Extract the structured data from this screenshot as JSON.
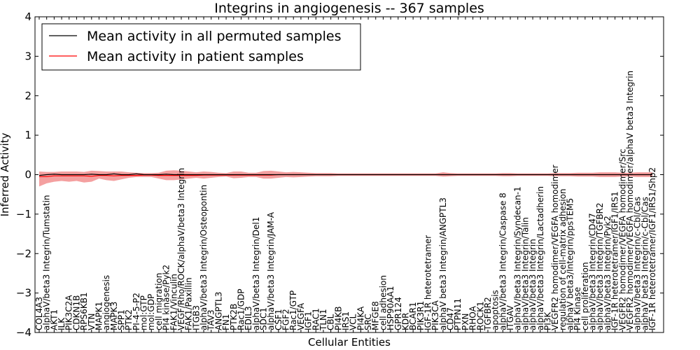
{
  "chart_data": {
    "type": "line",
    "title": "Integrins in angiogenesis -- 367 samples",
    "xlabel": "Cellular Entities",
    "ylabel": "Inferred Activity",
    "ylim": [
      -4,
      4
    ],
    "yticks": [
      -4,
      -3,
      -2,
      -1,
      0,
      1,
      2,
      3,
      4
    ],
    "ytick_labels": [
      "−4",
      "−3",
      "−2",
      "−1",
      "0",
      "1",
      "2",
      "3",
      "4"
    ],
    "grid": false,
    "legend_position": "top-left",
    "legend": [
      {
        "label": "Mean activity in all permuted samples",
        "color": "#000000"
      },
      {
        "label": "Mean activity in patient samples",
        "color": "#ff0000"
      }
    ],
    "band_color": "#f08080",
    "categories": [
      "COL4A3",
      "alphaV/beta3 Integrin/Tumstatin",
      "AKT1",
      "ILK",
      "PIK3C2A",
      "CDKN1B",
      "RPS6KB1",
      "VTN",
      "MAPK1",
      "angiogenesis",
      "MAPK3",
      "SPP1",
      "PTK2",
      "PI-4-5-P2",
      "mol:GTP",
      "mol:GDP",
      "cell migration",
      "PI4 kinase/Pyk2",
      "FAK1/Vinculin",
      "VEGF/Rho/ROCK/alphaV/beta3 Integrin",
      "FAK1/Paxillin",
      "ITGB3",
      "alphaV/beta3 Integrin/Osteopontin",
      "TAV3",
      "ANGPTL3",
      "FN1",
      "PTK2B",
      "Rac1/GDP",
      "EDIL3",
      "alphaV/beta3 Integrin/Del1",
      "SDC1",
      "alphaV/beta3 Integrin/JAM-A",
      "CSF1",
      "FGF2",
      "Rac1/GTP",
      "VEGFA",
      "IGF1",
      "RAC1",
      "TLN1",
      "CBL",
      "PI4KB",
      "IRS1",
      "VCL",
      "PI4KA",
      "SRC",
      "MFGE8",
      "cell adhesion",
      "HSP90AA1",
      "GPR124",
      "KDR",
      "BCAR1",
      "PIK3R1",
      "IGF-1R heterotetramer",
      "PIK3CA",
      "alphaV beta3 Integrin/ANGPTL3",
      "CD47",
      "PTPN11",
      "PXN",
      "RHOA",
      "ROCK1",
      "TGFBR2",
      "apoptosis",
      "alphaV/beta3 Integrin/Caspase 8",
      "ITGAV",
      "alphaV/beta3 Integrin/Syndecan-1",
      "alphaV/beta3 Integrin/Talin",
      "alphaV/beta3 Integrin",
      "alphaV/beta3 Integrin/Lactadherin",
      "PI3K",
      "VEGFR2 homodimer/VEGFA homodimer",
      "regulation of cell-matrix adhesion",
      "alphaV beta3/Integrin/ppsTEM5",
      "PI4 Kinase",
      "cell proliferation",
      "alphaV/beta3 Integrin/CD47",
      "alphaV/beta3 Integrin/TGFBR2",
      "alphaV/beta3 Integrin/Pyk2",
      "IGF-1R heterotetramer/IGF1/IRS1",
      "VEGFR2 homodimer/VEGFA homodimer/Src",
      "VEGFR2 homodimer/VEGFA homodimer/alphaV beta3 Integrin",
      "alphaV/beta3 Integrin/c-Cbl/Cas",
      "alphaV beta3 Integrin/c-Cbl/Cas",
      "IGF-1R heterotetramer/IGF1/IRS1/Shp2"
    ],
    "series": [
      {
        "name": "Mean activity in all permuted samples",
        "color": "#000000",
        "values": [
          -0.02,
          0.0,
          0.01,
          0.0,
          0.0,
          0.0,
          0.0,
          0.01,
          0.0,
          0.0,
          0.02,
          0.0,
          0.0,
          0.02,
          0.0,
          0.0,
          0.0,
          0.01,
          0.0,
          0.0,
          0.0,
          0.0,
          0.0,
          0.0,
          0.0,
          0.0,
          0.0,
          0.0,
          0.0,
          0.0,
          0.0,
          0.0,
          0.0,
          0.0,
          0.0,
          0.0,
          0.0,
          0.0,
          0.0,
          0.0,
          0.0,
          0.0,
          0.0,
          0.0,
          0.0,
          0.0,
          0.0,
          0.0,
          0.0,
          0.0,
          0.0,
          0.0,
          0.0,
          0.0,
          0.0,
          0.0,
          0.0,
          0.0,
          0.0,
          0.0,
          0.0,
          0.0,
          0.0,
          0.0,
          0.0,
          0.0,
          0.0,
          0.0,
          0.0,
          0.0,
          0.0,
          0.0,
          0.0,
          0.0,
          0.0,
          0.0,
          0.0,
          0.0,
          0.0,
          0.0,
          0.0,
          0.0,
          0.0
        ]
      },
      {
        "name": "Mean activity in patient samples",
        "color": "#ff0000",
        "values": [
          -0.05,
          -0.05,
          -0.03,
          -0.03,
          -0.03,
          -0.03,
          -0.03,
          -0.04,
          -0.02,
          -0.02,
          -0.03,
          -0.02,
          -0.02,
          -0.02,
          -0.01,
          -0.01,
          -0.02,
          -0.02,
          -0.02,
          -0.02,
          -0.02,
          -0.02,
          -0.01,
          -0.01,
          -0.01,
          -0.01,
          -0.01,
          -0.01,
          -0.01,
          -0.01,
          -0.01,
          -0.01,
          0.0,
          0.0,
          0.0,
          0.0,
          0.0,
          0.0,
          0.0,
          0.0,
          0.0,
          0.0,
          0.0,
          0.0,
          0.0,
          0.0,
          0.0,
          0.0,
          0.0,
          0.0,
          0.0,
          0.0,
          0.0,
          0.0,
          0.0,
          0.0,
          0.0,
          0.0,
          0.0,
          0.0,
          0.0,
          0.0,
          0.0,
          0.0,
          0.0,
          0.0,
          0.0,
          0.0,
          0.0,
          0.0,
          0.0,
          0.0,
          0.0,
          0.0,
          0.0,
          0.0,
          0.0,
          0.0,
          0.0,
          0.0,
          0.0,
          0.0,
          0.0
        ]
      }
    ],
    "band_upper": [
      0.08,
      0.07,
      0.07,
      0.08,
      0.08,
      0.08,
      0.07,
      0.1,
      0.09,
      0.08,
      0.08,
      0.08,
      0.06,
      0.05,
      0.04,
      0.04,
      0.05,
      0.1,
      0.11,
      0.1,
      0.08,
      0.06,
      0.08,
      0.07,
      0.05,
      0.04,
      0.08,
      0.08,
      0.05,
      0.05,
      0.09,
      0.1,
      0.08,
      0.06,
      0.07,
      0.06,
      0.05,
      0.04,
      0.04,
      0.04,
      0.03,
      0.03,
      0.03,
      0.03,
      0.03,
      0.03,
      0.03,
      0.03,
      0.03,
      0.03,
      0.03,
      0.03,
      0.03,
      0.03,
      0.06,
      0.04,
      0.03,
      0.03,
      0.03,
      0.03,
      0.03,
      0.03,
      0.04,
      0.04,
      0.03,
      0.03,
      0.03,
      0.03,
      0.03,
      0.04,
      0.04,
      0.04,
      0.05,
      0.05,
      0.05,
      0.06,
      0.06,
      0.06,
      0.05,
      0.05,
      0.06,
      0.06,
      0.06
    ],
    "band_lower": [
      -0.3,
      -0.22,
      -0.18,
      -0.16,
      -0.18,
      -0.16,
      -0.2,
      -0.18,
      -0.1,
      -0.14,
      -0.16,
      -0.12,
      -0.08,
      -0.06,
      -0.06,
      -0.06,
      -0.1,
      -0.14,
      -0.14,
      -0.12,
      -0.1,
      -0.08,
      -0.1,
      -0.08,
      -0.06,
      -0.05,
      -0.09,
      -0.08,
      -0.06,
      -0.06,
      -0.1,
      -0.1,
      -0.08,
      -0.06,
      -0.07,
      -0.06,
      -0.05,
      -0.04,
      -0.04,
      -0.04,
      -0.03,
      -0.03,
      -0.03,
      -0.03,
      -0.03,
      -0.03,
      -0.03,
      -0.03,
      -0.03,
      -0.03,
      -0.03,
      -0.03,
      -0.03,
      -0.03,
      -0.05,
      -0.04,
      -0.03,
      -0.03,
      -0.03,
      -0.03,
      -0.03,
      -0.03,
      -0.04,
      -0.04,
      -0.03,
      -0.03,
      -0.03,
      -0.03,
      -0.03,
      -0.04,
      -0.04,
      -0.04,
      -0.05,
      -0.05,
      -0.05,
      -0.06,
      -0.06,
      -0.06,
      -0.05,
      -0.05,
      -0.06,
      -0.06,
      -0.06
    ]
  }
}
